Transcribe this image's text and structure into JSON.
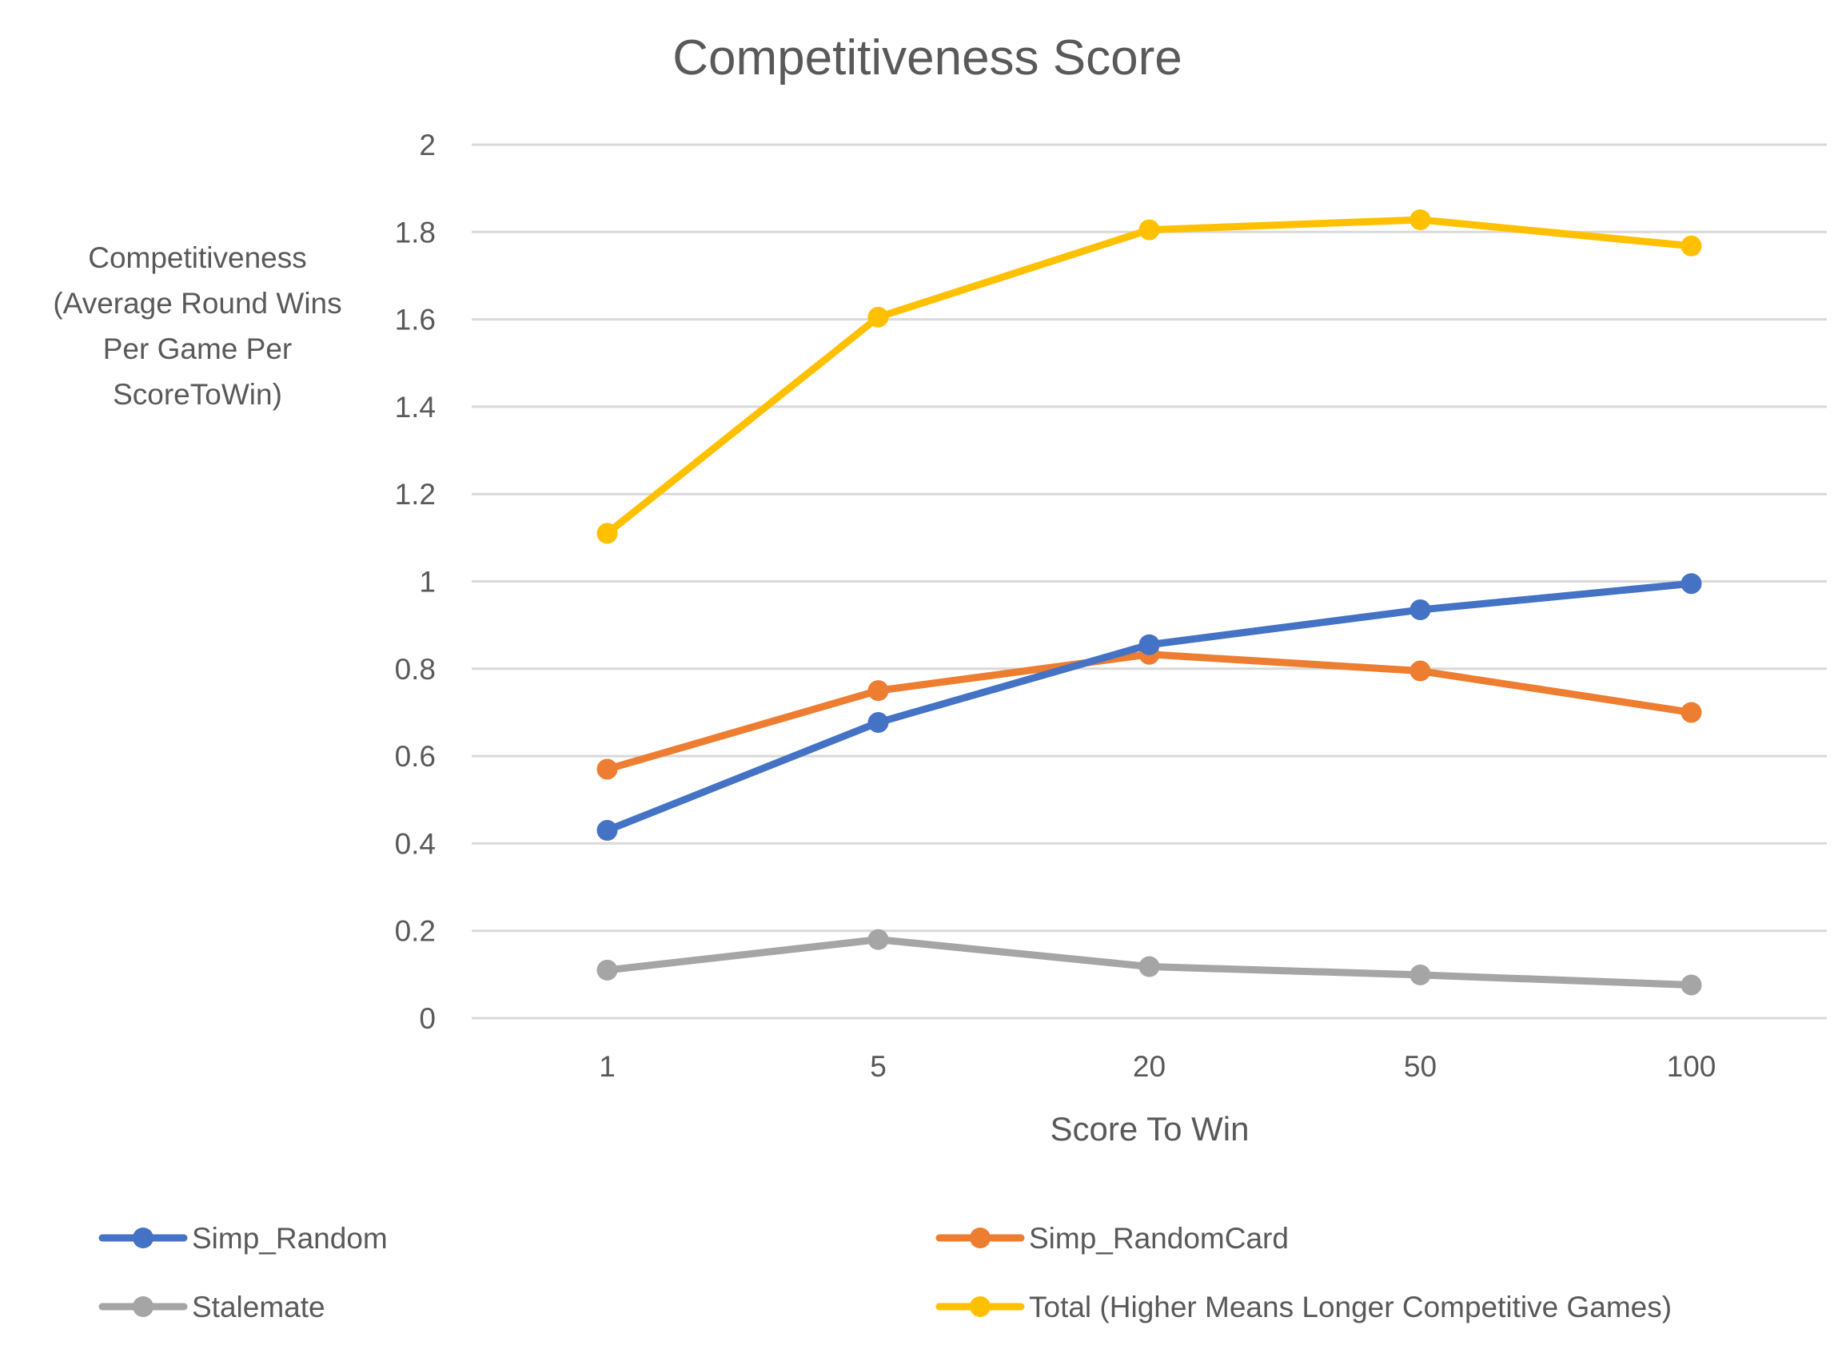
{
  "chart_data": {
    "type": "line",
    "title": "Competitiveness Score",
    "xlabel": "Score To Win",
    "ylabel_lines": [
      "Competitiveness",
      "(Average Round Wins",
      "Per Game Per",
      "ScoreToWin)"
    ],
    "categories": [
      "1",
      "5",
      "20",
      "50",
      "100"
    ],
    "ylim": [
      0,
      2
    ],
    "yticks": [
      "0",
      "0.2",
      "0.4",
      "0.6",
      "0.8",
      "1",
      "1.2",
      "1.4",
      "1.6",
      "1.8",
      "2"
    ],
    "grid": true,
    "legend_position": "bottom",
    "series": [
      {
        "name": "Simp_Random",
        "color": "#4472C4",
        "values": [
          0.43,
          0.677,
          0.855,
          0.935,
          0.995
        ]
      },
      {
        "name": "Simp_RandomCard",
        "color": "#ED7D31",
        "values": [
          0.57,
          0.75,
          0.833,
          0.795,
          0.7
        ]
      },
      {
        "name": "Stalemate",
        "color": "#A5A5A5",
        "values": [
          0.11,
          0.18,
          0.118,
          0.099,
          0.076
        ]
      },
      {
        "name": "Total (Higher Means Longer Competitive Games)",
        "color": "#FFC000",
        "values": [
          1.11,
          1.605,
          1.805,
          1.828,
          1.768
        ]
      }
    ]
  }
}
